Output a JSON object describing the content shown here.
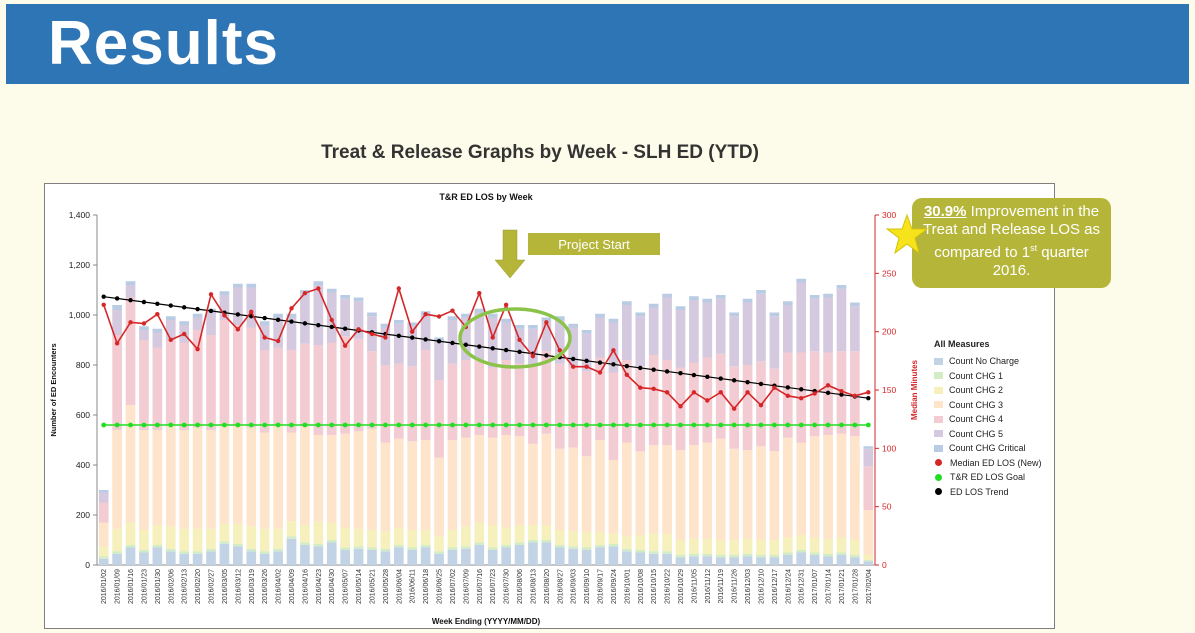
{
  "banner": {
    "title": "Results"
  },
  "page_subtitle": "Treat & Release Graphs by Week - SLH ED (YTD)",
  "callout": {
    "percent": "30.9%",
    "text_before_sup": " Improvement  in the Treat and Release LOS as compared to 1",
    "sup": "st",
    "text_after_sup": " quarter 2016."
  },
  "annotation": {
    "label": "Project Start"
  },
  "colors": {
    "banner": "#2e75b6",
    "callout": "#b5b53a",
    "no_charge": "#c2d3e6",
    "chg1": "#d2ecc6",
    "chg2": "#f6f0bd",
    "chg3": "#fde4cb",
    "chg4": "#f2ccd2",
    "chg5": "#d5c9df",
    "critical": "#b9cce4",
    "median": "#d62728",
    "goal": "#22dd22",
    "trend": "#000000",
    "highlight": "#8bc34a"
  },
  "legend": {
    "title": "All Measures",
    "items": [
      {
        "label": "Count No Charge",
        "kind": "swatch",
        "color": "#c2d3e6"
      },
      {
        "label": "Count CHG 1",
        "kind": "swatch",
        "color": "#d2ecc6"
      },
      {
        "label": "Count CHG 2",
        "kind": "swatch",
        "color": "#f6f0bd"
      },
      {
        "label": "Count CHG 3",
        "kind": "swatch",
        "color": "#fde4cb"
      },
      {
        "label": "Count CHG 4",
        "kind": "swatch",
        "color": "#f2ccd2"
      },
      {
        "label": "Count CHG 5",
        "kind": "swatch",
        "color": "#d5c9df"
      },
      {
        "label": "Count CHG Critical",
        "kind": "swatch",
        "color": "#b9cce4"
      },
      {
        "label": "Median ED LOS (New)",
        "kind": "dot",
        "color": "#d62728"
      },
      {
        "label": "T&R ED LOS Goal",
        "kind": "dot",
        "color": "#22dd22"
      },
      {
        "label": "ED LOS Trend",
        "kind": "dot",
        "color": "#000000"
      }
    ]
  },
  "chart_data": {
    "type": "bar",
    "stacked": true,
    "title": "T&R ED LOS by Week",
    "xlabel": "Week Ending (YYYY/MM/DD)",
    "ylabel": "Number of ED Encounters",
    "y2label": "Median Minutes",
    "ylim": [
      0,
      1400
    ],
    "y2lim": [
      0,
      300
    ],
    "yticks": [
      0,
      200,
      400,
      600,
      800,
      1000,
      1200,
      1400
    ],
    "ytick_labels": [
      "0",
      "200",
      "400",
      "600",
      "800",
      "1,000",
      "1,200",
      "1,400"
    ],
    "y2ticks": [
      0,
      50,
      100,
      150,
      200,
      250,
      300
    ],
    "categories": [
      "2016/01/02",
      "2016/01/09",
      "2016/01/16",
      "2016/01/23",
      "2016/01/30",
      "2016/02/06",
      "2016/02/13",
      "2016/02/20",
      "2016/02/27",
      "2016/03/05",
      "2016/03/12",
      "2016/03/19",
      "2016/03/26",
      "2016/04/02",
      "2016/04/09",
      "2016/04/16",
      "2016/04/23",
      "2016/04/30",
      "2016/05/07",
      "2016/05/14",
      "2016/05/21",
      "2016/05/28",
      "2016/06/04",
      "2016/06/11",
      "2016/06/18",
      "2016/06/25",
      "2016/07/02",
      "2016/07/09",
      "2016/07/16",
      "2016/07/23",
      "2016/07/30",
      "2016/08/06",
      "2016/08/13",
      "2016/08/20",
      "2016/08/27",
      "2016/09/03",
      "2016/09/10",
      "2016/09/17",
      "2016/09/24",
      "2016/10/01",
      "2016/10/08",
      "2016/10/15",
      "2016/10/22",
      "2016/10/29",
      "2016/11/05",
      "2016/11/12",
      "2016/11/19",
      "2016/11/26",
      "2016/12/03",
      "2016/12/10",
      "2016/12/17",
      "2016/12/24",
      "2016/12/31",
      "2017/01/07",
      "2017/01/14",
      "2017/01/21",
      "2017/01/28",
      "2017/02/04"
    ],
    "series": [
      {
        "name": "Count No Charge",
        "axis": "left",
        "values": [
          25,
          45,
          70,
          50,
          70,
          55,
          45,
          45,
          55,
          85,
          75,
          55,
          45,
          55,
          105,
          80,
          75,
          90,
          60,
          65,
          60,
          55,
          70,
          60,
          70,
          45,
          60,
          65,
          80,
          60,
          70,
          80,
          90,
          90,
          70,
          65,
          60,
          70,
          75,
          55,
          50,
          45,
          45,
          30,
          35,
          35,
          30,
          30,
          35,
          30,
          30,
          40,
          50,
          40,
          35,
          40,
          30,
          15
        ]
      },
      {
        "name": "Count CHG 1",
        "axis": "left",
        "values": [
          10,
          10,
          10,
          10,
          10,
          10,
          10,
          10,
          10,
          10,
          10,
          10,
          10,
          10,
          10,
          10,
          10,
          10,
          10,
          10,
          10,
          10,
          10,
          10,
          10,
          10,
          10,
          10,
          10,
          10,
          10,
          10,
          10,
          10,
          10,
          10,
          10,
          10,
          10,
          10,
          10,
          10,
          10,
          10,
          10,
          10,
          10,
          10,
          10,
          10,
          10,
          10,
          10,
          10,
          10,
          10,
          10,
          5
        ]
      },
      {
        "name": "Count CHG 2",
        "axis": "left",
        "values": [
          40,
          90,
          90,
          80,
          80,
          90,
          90,
          90,
          80,
          70,
          80,
          90,
          90,
          80,
          60,
          70,
          90,
          70,
          80,
          70,
          70,
          70,
          70,
          70,
          60,
          60,
          70,
          80,
          80,
          90,
          70,
          70,
          60,
          60,
          60,
          60,
          60,
          50,
          40,
          50,
          60,
          70,
          70,
          60,
          60,
          60,
          60,
          60,
          60,
          60,
          60,
          60,
          60,
          60,
          60,
          60,
          60,
          20
        ]
      },
      {
        "name": "Count CHG 3",
        "axis": "left",
        "values": [
          95,
          395,
          470,
          400,
          380,
          405,
          395,
          405,
          395,
          395,
          395,
          395,
          385,
          415,
          355,
          395,
          345,
          350,
          375,
          390,
          405,
          355,
          355,
          355,
          360,
          315,
          360,
          355,
          350,
          350,
          370,
          355,
          325,
          365,
          325,
          335,
          305,
          370,
          295,
          375,
          335,
          355,
          355,
          360,
          375,
          385,
          405,
          365,
          355,
          375,
          355,
          400,
          370,
          405,
          415,
          415,
          415,
          180
        ]
      },
      {
        "name": "Count CHG 4",
        "axis": "left",
        "values": [
          80,
          380,
          430,
          360,
          330,
          340,
          350,
          390,
          380,
          420,
          400,
          400,
          330,
          310,
          330,
          330,
          360,
          370,
          390,
          370,
          310,
          310,
          300,
          300,
          360,
          310,
          305,
          310,
          300,
          280,
          300,
          290,
          310,
          330,
          340,
          320,
          340,
          330,
          350,
          330,
          340,
          360,
          340,
          330,
          330,
          340,
          340,
          330,
          340,
          340,
          330,
          340,
          360,
          340,
          330,
          330,
          340,
          175
        ]
      },
      {
        "name": "Count CHG 5",
        "axis": "left",
        "values": [
          40,
          100,
          50,
          40,
          60,
          80,
          70,
          50,
          90,
          100,
          150,
          160,
          100,
          120,
          130,
          200,
          240,
          200,
          150,
          150,
          140,
          150,
          160,
          160,
          140,
          155,
          175,
          170,
          190,
          200,
          150,
          140,
          150,
          120,
          175,
          160,
          150,
          160,
          200,
          220,
          200,
          190,
          250,
          230,
          250,
          220,
          220,
          200,
          250,
          270,
          210,
          190,
          280,
          210,
          220,
          250,
          180,
          70
        ]
      },
      {
        "name": "Count CHG Critical",
        "axis": "left",
        "values": [
          10,
          20,
          15,
          15,
          15,
          15,
          15,
          15,
          15,
          15,
          15,
          15,
          15,
          15,
          15,
          15,
          15,
          15,
          15,
          15,
          15,
          15,
          15,
          15,
          15,
          15,
          15,
          15,
          15,
          15,
          15,
          15,
          15,
          15,
          15,
          15,
          15,
          15,
          15,
          15,
          15,
          15,
          15,
          15,
          15,
          15,
          15,
          15,
          15,
          15,
          15,
          15,
          15,
          15,
          15,
          15,
          15,
          10
        ]
      },
      {
        "name": "Median ED LOS (New)",
        "axis": "right",
        "type": "line",
        "values": [
          223,
          190,
          208,
          207,
          215,
          193,
          198,
          185,
          232,
          214,
          202,
          217,
          195,
          192,
          220,
          233,
          237,
          210,
          188,
          202,
          198,
          195,
          237,
          200,
          215,
          213,
          218,
          204,
          233,
          195,
          223,
          193,
          179,
          208,
          184,
          170,
          170,
          165,
          184,
          163,
          152,
          151,
          148,
          136,
          148,
          141,
          148,
          134,
          148,
          137,
          152,
          145,
          143,
          147,
          154,
          149,
          145,
          148
        ]
      },
      {
        "name": "T&R ED LOS Goal",
        "axis": "right",
        "type": "line",
        "values": [
          120,
          120,
          120,
          120,
          120,
          120,
          120,
          120,
          120,
          120,
          120,
          120,
          120,
          120,
          120,
          120,
          120,
          120,
          120,
          120,
          120,
          120,
          120,
          120,
          120,
          120,
          120,
          120,
          120,
          120,
          120,
          120,
          120,
          120,
          120,
          120,
          120,
          120,
          120,
          120,
          120,
          120,
          120,
          120,
          120,
          120,
          120,
          120,
          120,
          120,
          120,
          120,
          120,
          120,
          120,
          120,
          120,
          120
        ]
      },
      {
        "name": "ED LOS Trend",
        "axis": "right",
        "type": "line",
        "start": 230,
        "end": 143
      }
    ]
  }
}
